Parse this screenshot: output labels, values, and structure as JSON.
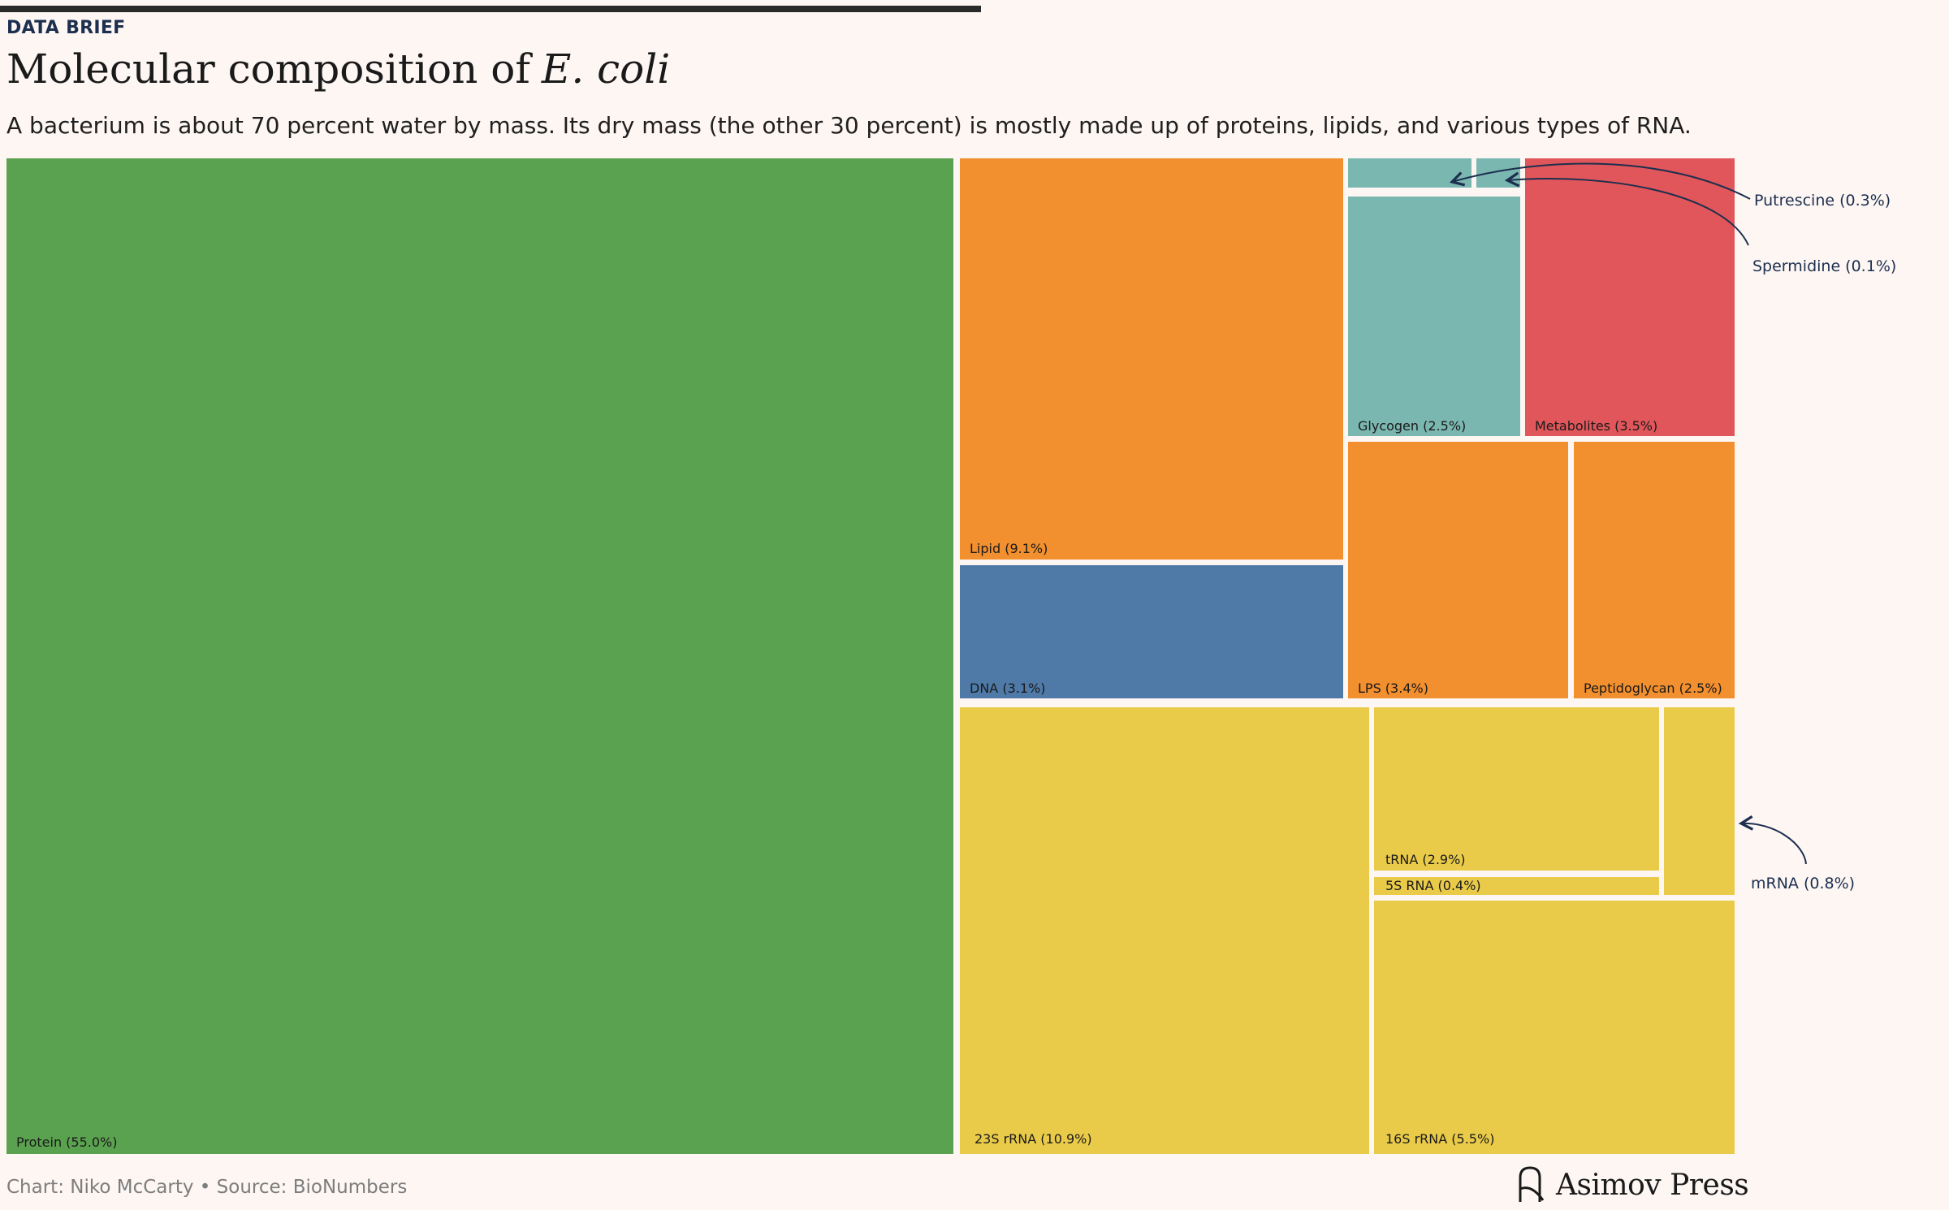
{
  "header": {
    "kicker": "DATA BRIEF",
    "title": "Molecular composition of",
    "title_em": "E. coli",
    "subtitle": "A bacterium is about 70 percent water by mass. Its dry mass (the other 30 percent) is mostly made up of proteins, lipids, and various types of RNA."
  },
  "footer": {
    "credit": "Chart: Niko McCarty • Source: BioNumbers",
    "brand": "Asimov Press"
  },
  "colors": {
    "background": "#fdf6f3",
    "protein": "#5ba250",
    "lipid": "#f28f2e",
    "dna": "#4f7aa8",
    "rna": "#eacb49",
    "carbohydrate": "#7bb7b1",
    "metabolite": "#e0565a",
    "annotation": "#1c2f4f"
  },
  "chart_data": {
    "type": "treemap",
    "unit": "% of dry mass",
    "items": [
      {
        "name": "Protein",
        "value": 55.0,
        "label": "Protein (55.0%)",
        "group": "protein"
      },
      {
        "name": "Lipid",
        "value": 9.1,
        "label": "Lipid (9.1%)",
        "group": "lipid"
      },
      {
        "name": "DNA",
        "value": 3.1,
        "label": "DNA (3.1%)",
        "group": "dna"
      },
      {
        "name": "Putrescine",
        "value": 0.3,
        "label": "Putrescine (0.3%)",
        "group": "carbohydrate",
        "external_label": true
      },
      {
        "name": "Spermidine",
        "value": 0.1,
        "label": "Spermidine (0.1%)",
        "group": "carbohydrate",
        "external_label": true
      },
      {
        "name": "Glycogen",
        "value": 2.5,
        "label": "Glycogen (2.5%)",
        "group": "carbohydrate"
      },
      {
        "name": "Metabolites",
        "value": 3.5,
        "label": "Metabolites (3.5%)",
        "group": "metabolite"
      },
      {
        "name": "LPS",
        "value": 3.4,
        "label": "LPS (3.4%)",
        "group": "lipid"
      },
      {
        "name": "Peptidoglycan",
        "value": 2.5,
        "label": "Peptidoglycan (2.5%)",
        "group": "lipid"
      },
      {
        "name": "23S rRNA",
        "value": 10.9,
        "label": "23S rRNA (10.9%)",
        "group": "rna"
      },
      {
        "name": "tRNA",
        "value": 2.9,
        "label": "tRNA (2.9%)",
        "group": "rna"
      },
      {
        "name": "5S RNA",
        "value": 0.4,
        "label": "5S RNA (0.4%)",
        "group": "rna"
      },
      {
        "name": "mRNA",
        "value": 0.8,
        "label": "mRNA (0.8%)",
        "group": "rna",
        "external_label": true
      },
      {
        "name": "16S rRNA",
        "value": 5.5,
        "label": "16S rRNA (5.5%)",
        "group": "rna"
      }
    ]
  }
}
